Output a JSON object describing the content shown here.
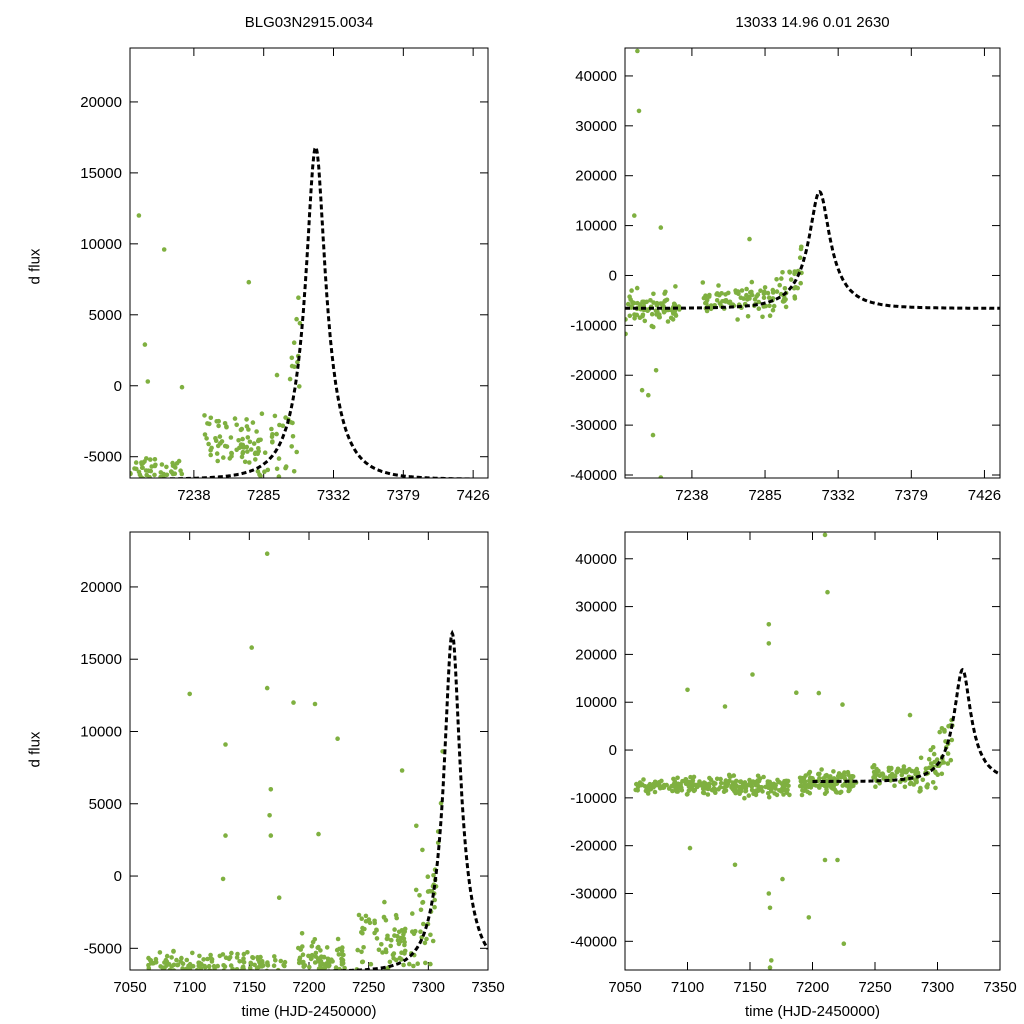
{
  "figure": {
    "title_left": "BLG03N2915.0034",
    "title_right": "13033  14.96  0.01  2630",
    "ylabel": "d flux",
    "xlabel": "time (HJD-2450000)",
    "colors": {
      "data": "#7fb040",
      "model": "#000000",
      "axes": "#000000"
    }
  },
  "chart_data": [
    {
      "id": "top-left",
      "type": "scatter",
      "title": "BLG03N2915.0034",
      "xlabel": "",
      "ylabel": "d flux",
      "xlim": [
        7195,
        7436
      ],
      "ylim": [
        -6500,
        23800
      ],
      "xticks": [
        7238,
        7285,
        7332,
        7379,
        7426
      ],
      "yticks": [
        -5000,
        0,
        5000,
        10000,
        15000,
        20000
      ],
      "series": [
        {
          "name": "data",
          "kind": "points",
          "segments": [
            [
              7195,
              7230,
              -6000,
              900,
              60
            ],
            [
              7245,
              7282,
              -4000,
              1500,
              70
            ],
            [
              7282,
              7310,
              6000,
              4000,
              50
            ]
          ],
          "outliers": [
            [
              7201,
              12000
            ],
            [
              7218,
              9600
            ],
            [
              7205,
              2900
            ],
            [
              7207,
              300
            ],
            [
              7230,
              -100
            ],
            [
              7275,
              7300
            ]
          ]
        },
        {
          "name": "model",
          "kind": "pspl",
          "t0": 7320,
          "tE": 23,
          "peak": 16800,
          "base": -6600
        }
      ]
    },
    {
      "id": "top-right",
      "type": "scatter",
      "title": "13033  14.96  0.01  2630",
      "xlabel": "",
      "ylabel": "",
      "xlim": [
        7195,
        7436
      ],
      "ylim": [
        -40600,
        45600
      ],
      "xticks": [
        7238,
        7285,
        7332,
        7379,
        7426
      ],
      "yticks": [
        -40000,
        -30000,
        -20000,
        -10000,
        0,
        10000,
        20000,
        30000,
        40000
      ],
      "series": [
        {
          "name": "data",
          "kind": "points",
          "segments": [
            [
              7195,
              7230,
              -6500,
              2500,
              80
            ],
            [
              7245,
              7282,
              -5000,
              2200,
              70
            ],
            [
              7282,
              7310,
              5000,
              4500,
              50
            ]
          ],
          "outliers": [
            [
              7203,
              45000
            ],
            [
              7204,
              33000
            ],
            [
              7201,
              12000
            ],
            [
              7218,
              9600
            ],
            [
              7206,
              -23000
            ],
            [
              7210,
              -24000
            ],
            [
              7213,
              -32000
            ],
            [
              7215,
              -19000
            ],
            [
              7218,
              -40500
            ],
            [
              7275,
              7300
            ]
          ]
        },
        {
          "name": "model",
          "kind": "pspl",
          "t0": 7320,
          "tE": 23,
          "peak": 16800,
          "base": -6600
        }
      ]
    },
    {
      "id": "bottom-left",
      "type": "scatter",
      "title": "",
      "xlabel": "time (HJD-2450000)",
      "ylabel": "d flux",
      "xlim": [
        7050,
        7350
      ],
      "ylim": [
        -6500,
        23800
      ],
      "xticks": [
        7050,
        7100,
        7150,
        7200,
        7250,
        7300,
        7350
      ],
      "yticks": [
        -5000,
        0,
        5000,
        10000,
        15000,
        20000
      ],
      "series": [
        {
          "name": "data",
          "kind": "points",
          "segments": [
            [
              7065,
              7180,
              -6200,
              700,
              150
            ],
            [
              7190,
              7230,
              -5800,
              1000,
              80
            ],
            [
              7240,
              7285,
              -4500,
              1800,
              70
            ],
            [
              7285,
              7312,
              3000,
              4500,
              50
            ]
          ],
          "outliers": [
            [
              7165,
              22300
            ],
            [
              7152,
              15800
            ],
            [
              7165,
              13000
            ],
            [
              7100,
              12600
            ],
            [
              7187,
              12000
            ],
            [
              7205,
              11900
            ],
            [
              7224,
              9500
            ],
            [
              7130,
              9100
            ],
            [
              7168,
              6000
            ],
            [
              7167,
              4200
            ],
            [
              7130,
              2800
            ],
            [
              7168,
              2800
            ],
            [
              7208,
              2900
            ],
            [
              7128,
              -200
            ],
            [
              7175,
              -1500
            ],
            [
              7278,
              7300
            ]
          ]
        },
        {
          "name": "model",
          "kind": "pspl",
          "t0": 7320,
          "tE": 23,
          "peak": 16800,
          "base": -6600,
          "xstart": 7200
        }
      ]
    },
    {
      "id": "bottom-right",
      "type": "scatter",
      "title": "",
      "xlabel": "time (HJD-2450000)",
      "ylabel": "",
      "xlim": [
        7050,
        7350
      ],
      "ylim": [
        -46000,
        45600
      ],
      "xticks": [
        7050,
        7100,
        7150,
        7200,
        7250,
        7300,
        7350
      ],
      "yticks": [
        -40000,
        -30000,
        -20000,
        -10000,
        0,
        10000,
        20000,
        30000,
        40000
      ],
      "series": [
        {
          "name": "data",
          "kind": "points",
          "segments": [
            [
              7058,
              7182,
              -7500,
              1500,
              260
            ],
            [
              7190,
              7235,
              -7000,
              2200,
              120
            ],
            [
              7245,
              7285,
              -5500,
              1800,
              70
            ],
            [
              7285,
              7312,
              3500,
              4500,
              50
            ]
          ],
          "outliers": [
            [
              7210,
              45000
            ],
            [
              7212,
              33000
            ],
            [
              7165,
              22300
            ],
            [
              7165,
              26300
            ],
            [
              7152,
              15800
            ],
            [
              7100,
              12600
            ],
            [
              7187,
              12000
            ],
            [
              7205,
              11900
            ],
            [
              7224,
              9500
            ],
            [
              7130,
              9100
            ],
            [
              7102,
              -20500
            ],
            [
              7138,
              -24000
            ],
            [
              7165,
              -30000
            ],
            [
              7166,
              -33000
            ],
            [
              7167,
              -44000
            ],
            [
              7166,
              -45500
            ],
            [
              7197,
              -35000
            ],
            [
              7210,
              -23000
            ],
            [
              7220,
              -23000
            ],
            [
              7225,
              -40500
            ],
            [
              7176,
              -27000
            ],
            [
              7278,
              7300
            ]
          ]
        },
        {
          "name": "model",
          "kind": "pspl",
          "t0": 7320,
          "tE": 23,
          "peak": 16800,
          "base": -6600,
          "xstart": 7200
        }
      ]
    }
  ]
}
